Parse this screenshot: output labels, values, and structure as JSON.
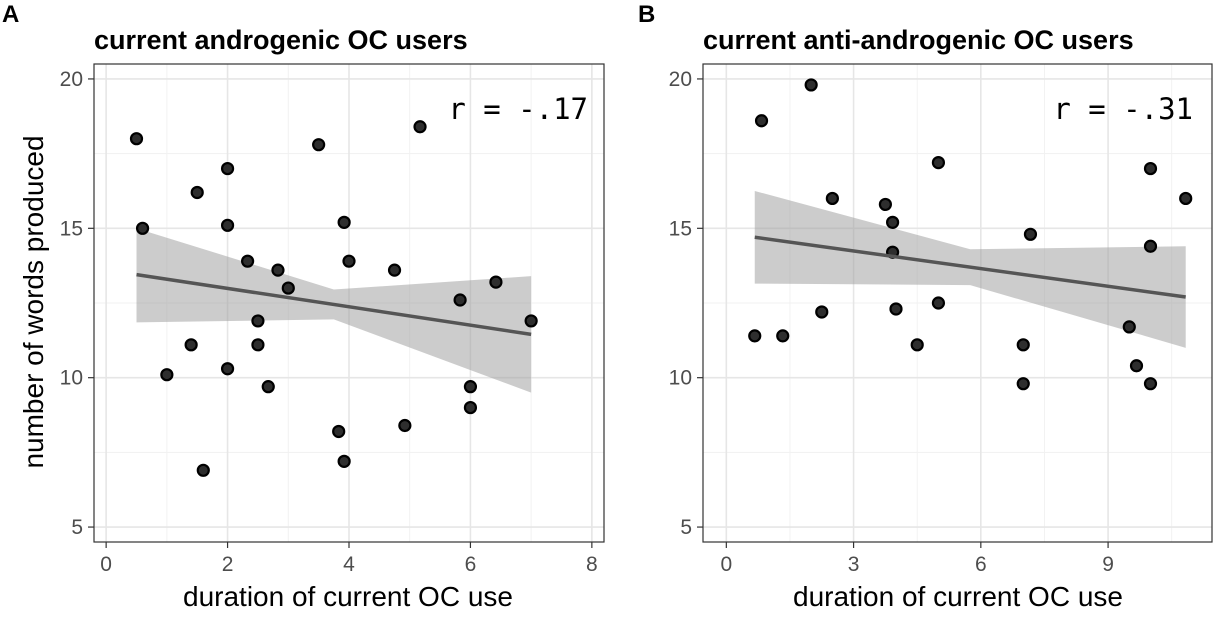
{
  "y_axis_label": "number of words produced",
  "chart_data": [
    {
      "type": "scatter",
      "panel": "A",
      "title": "current androgenic OC users",
      "xlabel": "duration of current OC use",
      "ylabel": "number of words produced",
      "annotation": "r = -.17",
      "xlim": [
        -0.2,
        8.2
      ],
      "ylim": [
        4.5,
        20.5
      ],
      "x_ticks": [
        0,
        2,
        4,
        6,
        8
      ],
      "y_ticks": [
        5,
        10,
        15,
        20
      ],
      "grid": true,
      "points": [
        {
          "x": 0.5,
          "y": 18.0
        },
        {
          "x": 0.6,
          "y": 15.0
        },
        {
          "x": 1.0,
          "y": 10.1
        },
        {
          "x": 1.4,
          "y": 11.1
        },
        {
          "x": 1.5,
          "y": 16.2
        },
        {
          "x": 1.6,
          "y": 6.9
        },
        {
          "x": 2.0,
          "y": 17.0
        },
        {
          "x": 2.0,
          "y": 15.1
        },
        {
          "x": 2.0,
          "y": 10.3
        },
        {
          "x": 2.33,
          "y": 13.9
        },
        {
          "x": 2.5,
          "y": 11.9
        },
        {
          "x": 2.5,
          "y": 11.1
        },
        {
          "x": 2.67,
          "y": 9.7
        },
        {
          "x": 2.83,
          "y": 13.6
        },
        {
          "x": 3.0,
          "y": 13.0
        },
        {
          "x": 3.5,
          "y": 17.8
        },
        {
          "x": 3.83,
          "y": 8.2
        },
        {
          "x": 3.92,
          "y": 15.2
        },
        {
          "x": 3.92,
          "y": 7.2
        },
        {
          "x": 4.0,
          "y": 13.9
        },
        {
          "x": 4.75,
          "y": 13.6
        },
        {
          "x": 4.92,
          "y": 8.4
        },
        {
          "x": 5.17,
          "y": 18.4
        },
        {
          "x": 5.83,
          "y": 12.6
        },
        {
          "x": 6.0,
          "y": 9.7
        },
        {
          "x": 6.0,
          "y": 9.0
        },
        {
          "x": 6.42,
          "y": 13.2
        },
        {
          "x": 7.0,
          "y": 11.9
        }
      ],
      "fit": {
        "x_range": [
          0.5,
          7.0
        ],
        "y_start": 13.45,
        "y_end": 11.45
      },
      "ci_band": {
        "x": [
          0.5,
          3.75,
          7.0
        ],
        "lower": [
          11.85,
          11.95,
          9.5
        ],
        "upper": [
          15.0,
          12.95,
          13.4
        ]
      }
    },
    {
      "type": "scatter",
      "panel": "B",
      "title": "current anti-androgenic OC users",
      "xlabel": "duration of current OC use",
      "ylabel": "",
      "annotation": "r = -.31",
      "xlim": [
        -0.55,
        11.45
      ],
      "ylim": [
        4.5,
        20.5
      ],
      "x_ticks": [
        0,
        3,
        6,
        9
      ],
      "y_ticks": [
        5,
        10,
        15,
        20
      ],
      "grid": true,
      "points": [
        {
          "x": 0.67,
          "y": 11.4
        },
        {
          "x": 0.83,
          "y": 18.6
        },
        {
          "x": 1.33,
          "y": 11.4
        },
        {
          "x": 2.0,
          "y": 19.8
        },
        {
          "x": 2.25,
          "y": 12.2
        },
        {
          "x": 2.5,
          "y": 16.0
        },
        {
          "x": 3.75,
          "y": 15.8
        },
        {
          "x": 3.92,
          "y": 15.2
        },
        {
          "x": 3.92,
          "y": 14.2
        },
        {
          "x": 4.0,
          "y": 12.3
        },
        {
          "x": 4.5,
          "y": 11.1
        },
        {
          "x": 5.0,
          "y": 17.2
        },
        {
          "x": 5.0,
          "y": 12.5
        },
        {
          "x": 7.0,
          "y": 11.1
        },
        {
          "x": 7.0,
          "y": 9.8
        },
        {
          "x": 7.17,
          "y": 14.8
        },
        {
          "x": 9.5,
          "y": 11.7
        },
        {
          "x": 9.67,
          "y": 10.4
        },
        {
          "x": 10.0,
          "y": 17.0
        },
        {
          "x": 10.0,
          "y": 14.4
        },
        {
          "x": 10.0,
          "y": 9.8
        },
        {
          "x": 10.83,
          "y": 16.0
        }
      ],
      "fit": {
        "x_range": [
          0.67,
          10.83
        ],
        "y_start": 14.7,
        "y_end": 12.7
      },
      "ci_band": {
        "x": [
          0.67,
          5.75,
          10.83
        ],
        "lower": [
          13.15,
          13.1,
          11.0
        ],
        "upper": [
          16.25,
          14.3,
          14.4
        ]
      }
    }
  ]
}
